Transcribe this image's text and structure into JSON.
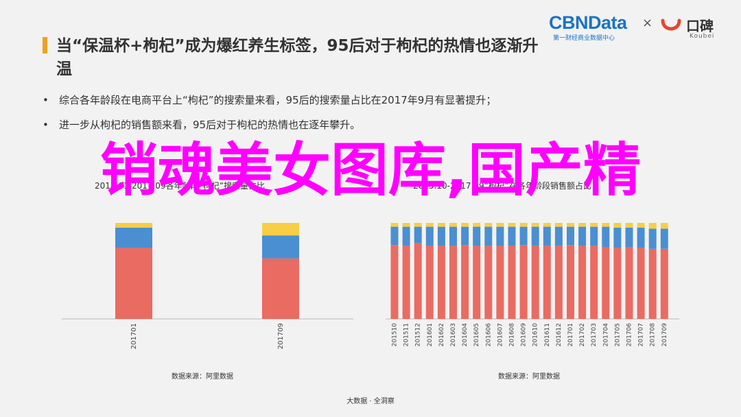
{
  "slide": {
    "title": "当“保温杯+枸杞”成为爆红养生标签，95后对于枸杞的热情也逐渐升温",
    "bullets": [
      "综合各年龄段在电商平台上“枸杞”的搜索量来看，95后的搜索量占比在2017年9月有显著提升；",
      "进一步从枸杞的销售额来看，95后对于枸杞的热情也在逐年攀升。"
    ],
    "footer": "大数据 · 全洞察",
    "overlay_text": "销魂美女图库,国产精",
    "logos": {
      "cbndata": "CBNData",
      "cbndata_sub": "第一财经商业数据中心",
      "times": "×",
      "koubei_cn": "口碑",
      "koubei_en": "Koubei"
    }
  },
  "colors": {
    "red": "#ea6b62",
    "blue": "#4a8fd2",
    "yellow": "#f7ce46",
    "accent": "#f0a020",
    "overlay": "#ff00ff"
  },
  "chart_data": [
    {
      "type": "bar",
      "stacked": true,
      "title": "2017.01-2017.09各年龄段“枸杞”搜索量占比",
      "source": "数据来源：阿里数据",
      "categories": [
        "201701",
        "201709"
      ],
      "series": [
        {
          "name": "",
          "color": "#ea6b62",
          "values": [
            0.74,
            0.63
          ]
        },
        {
          "name": "",
          "color": "#4a8fd2",
          "values": [
            0.21,
            0.24
          ]
        },
        {
          "name": "",
          "color": "#f7ce46",
          "values": [
            0.05,
            0.13
          ]
        }
      ],
      "ylim": [
        0,
        1
      ]
    },
    {
      "type": "bar",
      "stacked": true,
      "title": "2015.10-2017.09“枸杞”在各年龄段销售额占比",
      "source": "数据来源：阿里数据",
      "categories": [
        "201510",
        "201511",
        "201512",
        "201601",
        "201602",
        "201603",
        "201604",
        "201605",
        "201606",
        "201607",
        "201608",
        "201609",
        "201610",
        "201611",
        "201612",
        "201701",
        "201702",
        "201703",
        "201704",
        "201705",
        "201706",
        "201707",
        "201708",
        "201709"
      ],
      "series": [
        {
          "name": "",
          "color": "#ea6b62",
          "values": [
            0.77,
            0.76,
            0.79,
            0.76,
            0.76,
            0.76,
            0.77,
            0.76,
            0.76,
            0.76,
            0.76,
            0.77,
            0.76,
            0.76,
            0.76,
            0.77,
            0.76,
            0.76,
            0.75,
            0.74,
            0.75,
            0.74,
            0.73,
            0.73
          ]
        },
        {
          "name": "",
          "color": "#4a8fd2",
          "values": [
            0.19,
            0.2,
            0.17,
            0.2,
            0.2,
            0.2,
            0.19,
            0.2,
            0.2,
            0.2,
            0.2,
            0.19,
            0.2,
            0.2,
            0.2,
            0.19,
            0.2,
            0.2,
            0.21,
            0.21,
            0.2,
            0.21,
            0.21,
            0.21
          ]
        },
        {
          "name": "",
          "color": "#f7ce46",
          "values": [
            0.04,
            0.04,
            0.04,
            0.04,
            0.04,
            0.04,
            0.04,
            0.04,
            0.04,
            0.04,
            0.04,
            0.04,
            0.04,
            0.04,
            0.04,
            0.04,
            0.04,
            0.04,
            0.04,
            0.05,
            0.05,
            0.05,
            0.06,
            0.06
          ]
        }
      ],
      "ylim": [
        0,
        1
      ]
    }
  ]
}
